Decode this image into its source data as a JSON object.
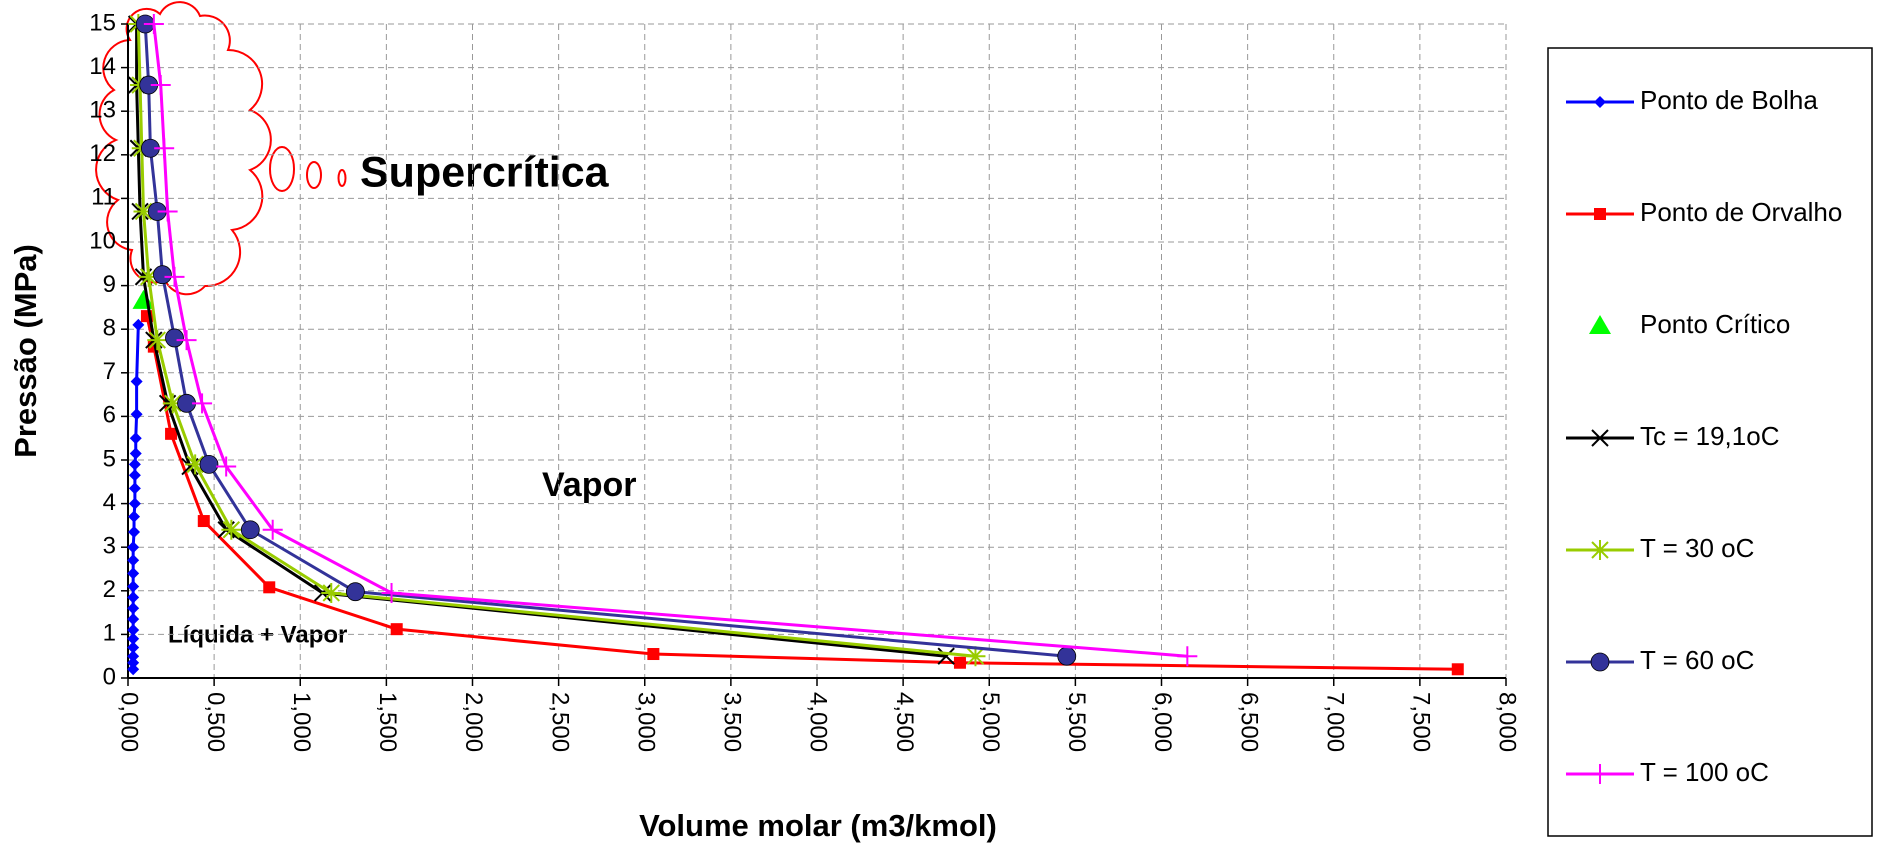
{
  "chart_data": {
    "type": "scatter",
    "xlabel": "Volume molar (m3/kmol)",
    "ylabel": "Pressão (MPa)",
    "xlim": [
      0,
      8
    ],
    "ylim": [
      0,
      15
    ],
    "xticks": [
      {
        "value": 0,
        "label": "0,000"
      },
      {
        "value": 0.5,
        "label": "0,500"
      },
      {
        "value": 1,
        "label": "1,000"
      },
      {
        "value": 1.5,
        "label": "1,500"
      },
      {
        "value": 2,
        "label": "2,000"
      },
      {
        "value": 2.5,
        "label": "2,500"
      },
      {
        "value": 3,
        "label": "3,000"
      },
      {
        "value": 3.5,
        "label": "3,500"
      },
      {
        "value": 4,
        "label": "4,000"
      },
      {
        "value": 4.5,
        "label": "4,500"
      },
      {
        "value": 5,
        "label": "5,000"
      },
      {
        "value": 5.5,
        "label": "5,500"
      },
      {
        "value": 6,
        "label": "6,000"
      },
      {
        "value": 6.5,
        "label": "6,500"
      },
      {
        "value": 7,
        "label": "7,000"
      },
      {
        "value": 7.5,
        "label": "7,500"
      },
      {
        "value": 8,
        "label": "8,000"
      }
    ],
    "yticks": [
      0,
      1,
      2,
      3,
      4,
      5,
      6,
      7,
      8,
      9,
      10,
      11,
      12,
      13,
      14,
      15
    ],
    "grid": true,
    "legend": "right",
    "annotations": [
      "Supercrítica",
      "Vapor",
      "Líquida + Vapor"
    ],
    "series": [
      {
        "name": "Ponto de Bolha",
        "color": "#0000ff",
        "marker": "diamond",
        "line": true,
        "x": [
          0.03,
          0.03,
          0.03,
          0.03,
          0.03,
          0.03,
          0.03,
          0.03,
          0.03,
          0.03,
          0.03,
          0.03,
          0.03,
          0.035,
          0.035,
          0.04,
          0.04,
          0.04,
          0.04,
          0.045,
          0.045,
          0.05,
          0.05,
          0.06
        ],
        "values": [
          0.2,
          0.35,
          0.5,
          0.7,
          0.9,
          1.1,
          1.35,
          1.6,
          1.85,
          2.1,
          2.4,
          2.7,
          3.0,
          3.35,
          3.7,
          4.0,
          4.35,
          4.65,
          4.9,
          5.15,
          5.5,
          6.05,
          6.8,
          8.1
        ]
      },
      {
        "name": "Ponto de Orvalho",
        "color": "#ff0000",
        "marker": "square",
        "line": true,
        "x": [
          7.72,
          4.83,
          3.05,
          1.56,
          0.82,
          0.44,
          0.25,
          0.15,
          0.11
        ],
        "values": [
          0.2,
          0.35,
          0.55,
          1.12,
          2.08,
          3.6,
          5.6,
          7.6,
          8.3
        ]
      },
      {
        "name": "Ponto Crítico",
        "color": "#00ff00",
        "marker": "triangle",
        "line": false,
        "x": [
          0.09
        ],
        "values": [
          8.65
        ]
      },
      {
        "name": "Tc = 19,1oC",
        "color": "#000000",
        "marker": "x",
        "line": true,
        "x": [
          4.75,
          1.13,
          0.57,
          0.36,
          0.23,
          0.15,
          0.09,
          0.07,
          0.06,
          0.05,
          0.05
        ],
        "values": [
          0.5,
          1.95,
          3.4,
          4.85,
          6.3,
          7.75,
          9.2,
          10.7,
          12.15,
          13.6,
          15
        ]
      },
      {
        "name": "T = 30 oC",
        "color": "#99cc00",
        "marker": "star",
        "line": true,
        "x": [
          4.92,
          1.18,
          0.6,
          0.39,
          0.26,
          0.17,
          0.12,
          0.09,
          0.08,
          0.07,
          0.06
        ],
        "values": [
          0.5,
          1.95,
          3.4,
          4.9,
          6.3,
          7.75,
          9.2,
          10.7,
          12.15,
          13.6,
          15
        ]
      },
      {
        "name": "T = 60 oC",
        "color": "#333399",
        "marker": "circle",
        "line": true,
        "x": [
          5.45,
          1.32,
          0.71,
          0.47,
          0.34,
          0.27,
          0.2,
          0.17,
          0.13,
          0.12,
          0.1
        ],
        "values": [
          0.5,
          1.98,
          3.4,
          4.9,
          6.3,
          7.8,
          9.25,
          10.7,
          12.15,
          13.6,
          15
        ]
      },
      {
        "name": "T = 100 oC",
        "color": "#ff00ff",
        "marker": "plus",
        "line": true,
        "x": [
          6.15,
          1.53,
          0.84,
          0.57,
          0.43,
          0.34,
          0.27,
          0.23,
          0.21,
          0.19,
          0.15
        ],
        "values": [
          0.5,
          1.95,
          3.4,
          4.85,
          6.3,
          7.75,
          9.2,
          10.7,
          12.15,
          13.6,
          15
        ]
      }
    ]
  }
}
